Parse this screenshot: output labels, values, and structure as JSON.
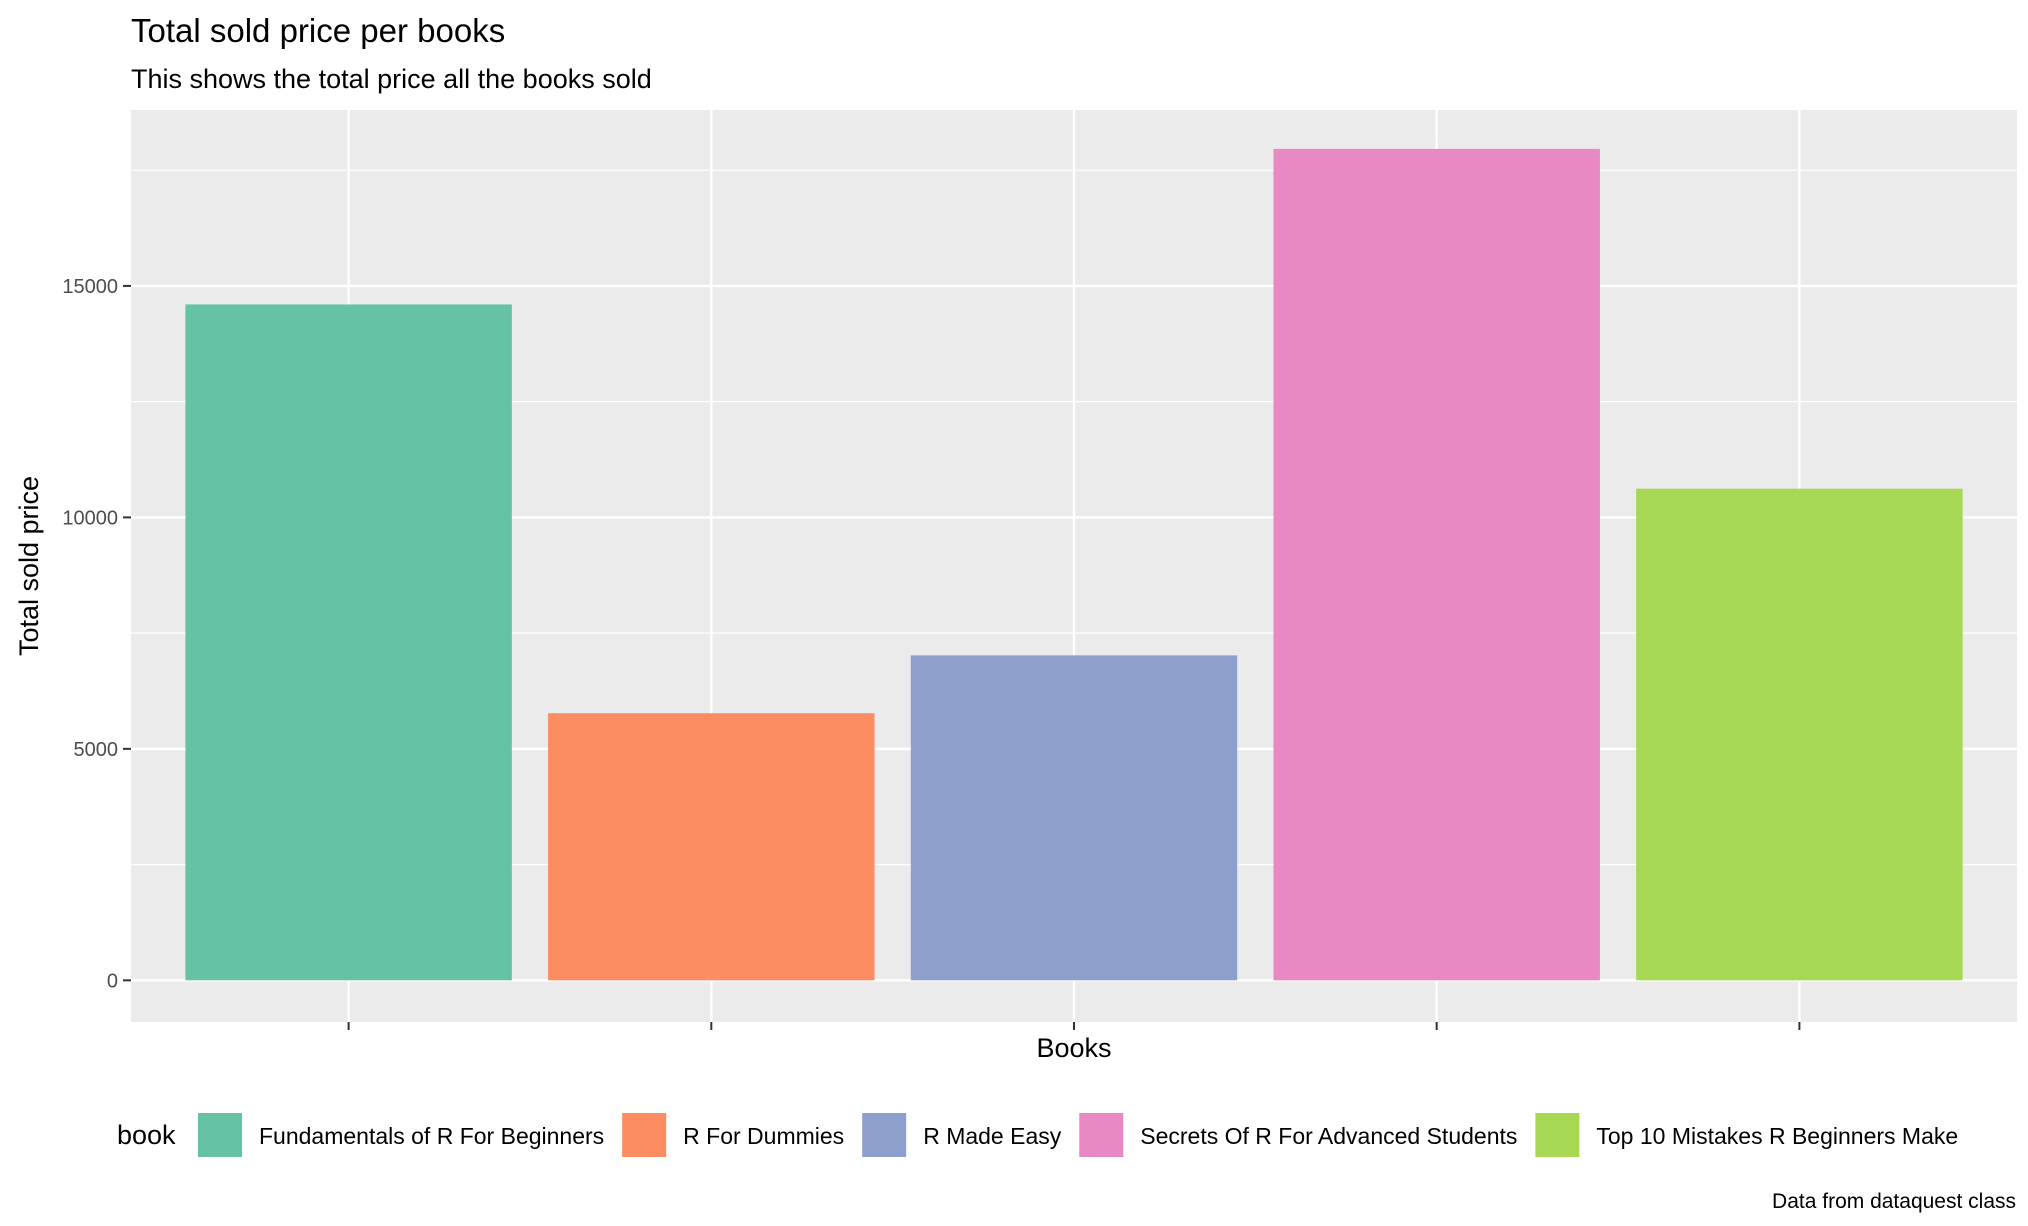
{
  "chart_data": {
    "type": "bar",
    "title": "Total sold price per books",
    "subtitle": "This shows the total price all the books sold",
    "xlabel": "Books",
    "ylabel": "Total sold price",
    "caption": "Data from dataquest class",
    "categories": [
      "Fundamentals of R For Beginners",
      "R For Dummies",
      "R Made Easy",
      "Secrets Of R For Advanced Students",
      "Top 10 Mistakes R Beginners Make"
    ],
    "values": [
      14600,
      5770,
      7020,
      17960,
      10620
    ],
    "colors": [
      "#66c2a5",
      "#fc8d62",
      "#8da0cb",
      "#e78ac3",
      "#a6d854"
    ],
    "ylim": [
      -900,
      18800
    ],
    "yticks": [
      0,
      5000,
      10000,
      15000
    ],
    "ytick_labels": [
      "0",
      "5000",
      "10000",
      "15000"
    ],
    "yminor": [
      2500,
      7500,
      12500,
      17500
    ],
    "x_tick_labels_shown": false,
    "grid": true,
    "panel_background": "#ebebeb",
    "grid_color": "#ffffff",
    "legend": {
      "title": "book",
      "position": "bottom",
      "entries": [
        "Fundamentals of R For Beginners",
        "R For Dummies",
        "R Made Easy",
        "Secrets Of R For Advanced Students",
        "Top 10 Mistakes R Beginners Make"
      ]
    }
  }
}
